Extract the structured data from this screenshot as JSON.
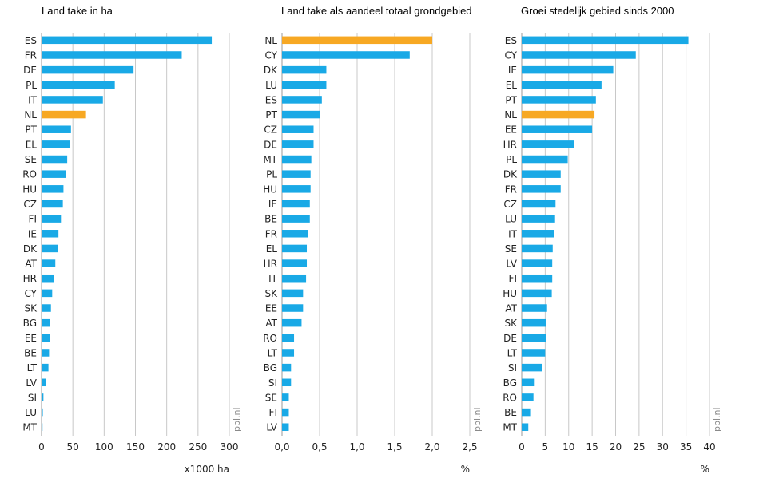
{
  "colors": {
    "default": "#19a9e6",
    "highlight": "#f7a823",
    "grid": "#c8c8c8",
    "axis": "#9a9a9a"
  },
  "watermark": "pbl.nl",
  "chart_data": [
    {
      "type": "bar",
      "orientation": "horizontal",
      "title": "Land take in ha",
      "xlabel": "x1000 ha",
      "xlim": [
        0,
        300
      ],
      "xticks": [
        0,
        50,
        100,
        150,
        200,
        250,
        300
      ],
      "xtick_labels": [
        "0",
        "50",
        "100",
        "150",
        "200",
        "250",
        "300"
      ],
      "grid": true,
      "highlight": "NL",
      "categories": [
        "ES",
        "FR",
        "DE",
        "PL",
        "IT",
        "NL",
        "PT",
        "EL",
        "SE",
        "RO",
        "HU",
        "CZ",
        "FI",
        "IE",
        "DK",
        "AT",
        "HR",
        "CY",
        "SK",
        "BG",
        "EE",
        "BE",
        "LT",
        "LV",
        "SI",
        "LU",
        "MT"
      ],
      "values": [
        272,
        224,
        147,
        117,
        98,
        71,
        47,
        45,
        41,
        39,
        35,
        34,
        31,
        27,
        26,
        22,
        20,
        17,
        15,
        14,
        13,
        12,
        11,
        7,
        3,
        2,
        1
      ]
    },
    {
      "type": "bar",
      "orientation": "horizontal",
      "title": "Land take als aandeel totaal grondgebied",
      "xlabel": "%",
      "xlim": [
        0,
        2.5
      ],
      "xticks": [
        0,
        0.5,
        1.0,
        1.5,
        2.0,
        2.5
      ],
      "xtick_labels": [
        "0,0",
        "0,5",
        "1,0",
        "1,5",
        "2,0",
        "2,5"
      ],
      "grid": true,
      "highlight": "NL",
      "categories": [
        "NL",
        "CY",
        "DK",
        "LU",
        "ES",
        "PT",
        "CZ",
        "DE",
        "MT",
        "PL",
        "HU",
        "IE",
        "BE",
        "FR",
        "EL",
        "HR",
        "IT",
        "SK",
        "EE",
        "AT",
        "RO",
        "LT",
        "BG",
        "SI",
        "SE",
        "FI",
        "LV"
      ],
      "values": [
        2.0,
        1.7,
        0.59,
        0.59,
        0.53,
        0.5,
        0.42,
        0.42,
        0.39,
        0.38,
        0.38,
        0.37,
        0.37,
        0.35,
        0.33,
        0.33,
        0.32,
        0.28,
        0.28,
        0.26,
        0.16,
        0.16,
        0.12,
        0.12,
        0.09,
        0.09,
        0.09
      ]
    },
    {
      "type": "bar",
      "orientation": "horizontal",
      "title": "Groei stedelijk gebied sinds 2000",
      "xlabel": "%",
      "xlim": [
        0,
        40
      ],
      "xticks": [
        0,
        5,
        10,
        15,
        20,
        25,
        30,
        35,
        40
      ],
      "xtick_labels": [
        "0",
        "5",
        "10",
        "15",
        "20",
        "25",
        "30",
        "35",
        "40"
      ],
      "grid": true,
      "highlight": "NL",
      "categories": [
        "ES",
        "CY",
        "IE",
        "EL",
        "PT",
        "NL",
        "EE",
        "HR",
        "PL",
        "DK",
        "FR",
        "CZ",
        "LU",
        "IT",
        "SE",
        "LV",
        "FI",
        "HU",
        "AT",
        "SK",
        "DE",
        "LT",
        "SI",
        "BG",
        "RO",
        "BE",
        "MT"
      ],
      "values": [
        35.5,
        24.3,
        19.5,
        17.0,
        15.8,
        15.5,
        15.0,
        11.2,
        9.8,
        8.3,
        8.3,
        7.2,
        7.1,
        6.9,
        6.6,
        6.5,
        6.5,
        6.4,
        5.4,
        5.2,
        5.2,
        5.0,
        4.3,
        2.6,
        2.5,
        1.8,
        1.4
      ]
    }
  ]
}
